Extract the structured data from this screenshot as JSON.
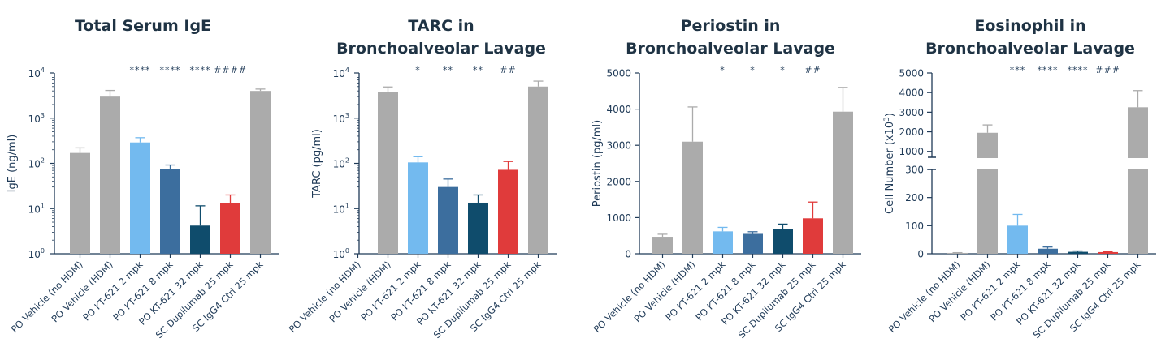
{
  "colors": {
    "vehicle_gray": "#ABABAB",
    "kt2_light_blue": "#73BAEF",
    "kt8_mid_blue": "#3C6E9E",
    "kt32_dark_blue": "#0F4C6C",
    "dupilumab_red": "#E03B3B",
    "axis_navy": "#1F3A57"
  },
  "categories": [
    "PO Vehicle (no HDM)",
    "PO Vehicle (HDM)",
    "PO KT-621 2 mpk",
    "PO KT-621 8 mpk",
    "PO KT-621 32 mpk",
    "SC Dupilumab 25 mpk",
    "SC IgG4 Ctrl 25 mpk"
  ],
  "chart_data": [
    {
      "type": "bar",
      "title": [
        "Total Serum IgE"
      ],
      "ylabel": "IgE (ng/ml)",
      "yscale": "log",
      "ylim": [
        1,
        10000
      ],
      "ticks": [
        {
          "base": "10",
          "exp": "0"
        },
        {
          "base": "10",
          "exp": "1"
        },
        {
          "base": "10",
          "exp": "2"
        },
        {
          "base": "10",
          "exp": "3"
        },
        {
          "base": "10",
          "exp": "4"
        }
      ],
      "values": [
        170,
        3000,
        290,
        75,
        4.2,
        13,
        4000
      ],
      "errors": [
        220,
        4100,
        370,
        92,
        11.5,
        20,
        4400
      ],
      "significance": [
        "",
        "",
        "****",
        "****",
        "****",
        "####",
        ""
      ]
    },
    {
      "type": "bar",
      "title": [
        "TARC in",
        "Bronchoalveolar Lavage"
      ],
      "ylabel": "TARC (pg/ml)",
      "yscale": "log",
      "ylim": [
        1,
        10000
      ],
      "ticks": [
        {
          "base": "10",
          "exp": "0"
        },
        {
          "base": "10",
          "exp": "1"
        },
        {
          "base": "10",
          "exp": "2"
        },
        {
          "base": "10",
          "exp": "3"
        },
        {
          "base": "10",
          "exp": "4"
        }
      ],
      "values": [
        null,
        3800,
        105,
        30,
        13.5,
        72,
        5000
      ],
      "errors": [
        null,
        4900,
        140,
        45,
        20,
        110,
        6600
      ],
      "significance": [
        "",
        "",
        "*",
        "**",
        "**",
        "##",
        ""
      ]
    },
    {
      "type": "bar",
      "title": [
        "Periostin in",
        "Bronchoalveolar Lavage"
      ],
      "ylabel": "Periostin (pg/ml)",
      "yscale": "linear",
      "ylim": [
        0,
        5000
      ],
      "ticks": [
        "0",
        "1000",
        "2000",
        "3000",
        "4000",
        "5000"
      ],
      "values": [
        470,
        3100,
        620,
        550,
        680,
        980,
        3930
      ],
      "errors": [
        540,
        4060,
        730,
        610,
        820,
        1430,
        4600
      ],
      "significance": [
        "",
        "",
        "*",
        "*",
        "*",
        "##",
        ""
      ]
    },
    {
      "type": "bar",
      "title": [
        "Eosinophil in",
        "Bronchoalveolar Lavage"
      ],
      "ylabel": "Cell Number (x10",
      "ylabel_sup": "3",
      "ylabel_end": ")",
      "yscale": "broken-linear",
      "ylim": [
        0,
        5000
      ],
      "axis_break": [
        300,
        700
      ],
      "ticks_lower": [
        "0",
        "100",
        "200",
        "300"
      ],
      "ticks_upper": [
        "1000",
        "2000",
        "3000",
        "4000",
        "5000"
      ],
      "values": [
        3,
        1950,
        100,
        18,
        7,
        6,
        3250
      ],
      "errors": [
        4,
        2350,
        140,
        24,
        10,
        7,
        4100
      ],
      "significance": [
        "",
        "",
        "***",
        "****",
        "****",
        "###",
        ""
      ]
    }
  ]
}
